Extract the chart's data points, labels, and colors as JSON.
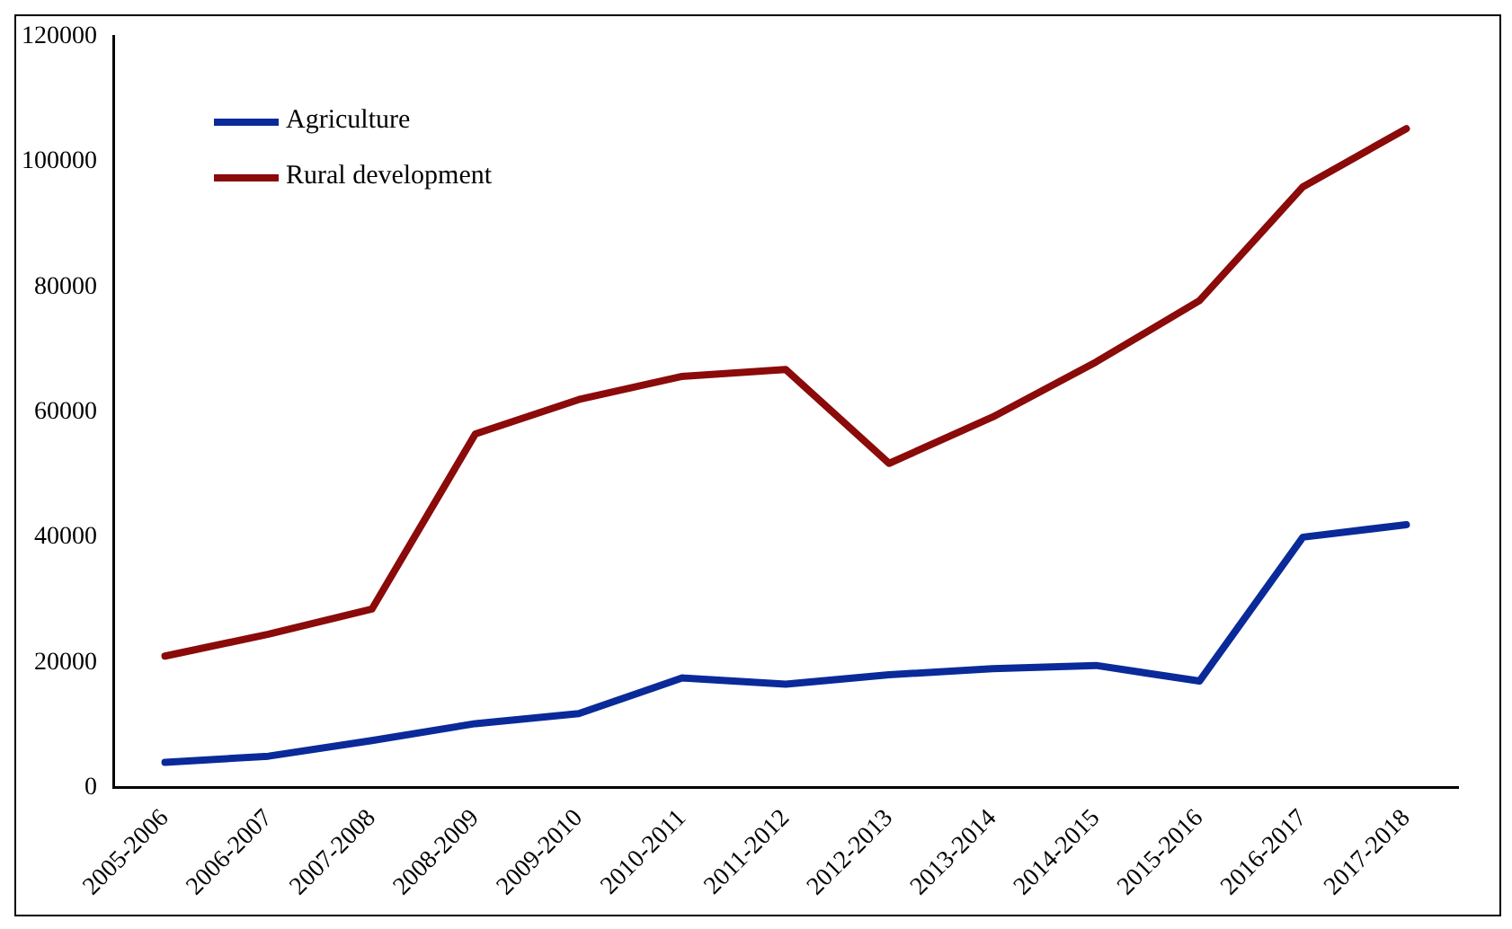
{
  "chart_data": {
    "type": "line",
    "categories": [
      "2005-2006",
      "2006-2007",
      "2007-2008",
      "2008-2009",
      "2009-2010",
      "2010-2011",
      "2011-2012",
      "2012-2013",
      "2013-2014",
      "2014-2015",
      "2015-2016",
      "2016-2017",
      "2017-2018"
    ],
    "series": [
      {
        "name": "Agriculture",
        "color": "#0a2a9a",
        "values": [
          4000,
          5000,
          7500,
          10200,
          11800,
          17500,
          16500,
          18000,
          19000,
          19500,
          17000,
          40000,
          42000
        ]
      },
      {
        "name": "Rural development",
        "color": "#8b0a0a",
        "values": [
          21000,
          24500,
          28500,
          56500,
          62000,
          65700,
          66800,
          51800,
          59200,
          68000,
          77800,
          96000,
          105300
        ]
      }
    ],
    "ylim": [
      0,
      120000
    ],
    "yticks": [
      0,
      20000,
      40000,
      60000,
      80000,
      100000,
      120000
    ],
    "grid": false,
    "legend": "top left",
    "marker": "none",
    "line_style": "solid"
  }
}
